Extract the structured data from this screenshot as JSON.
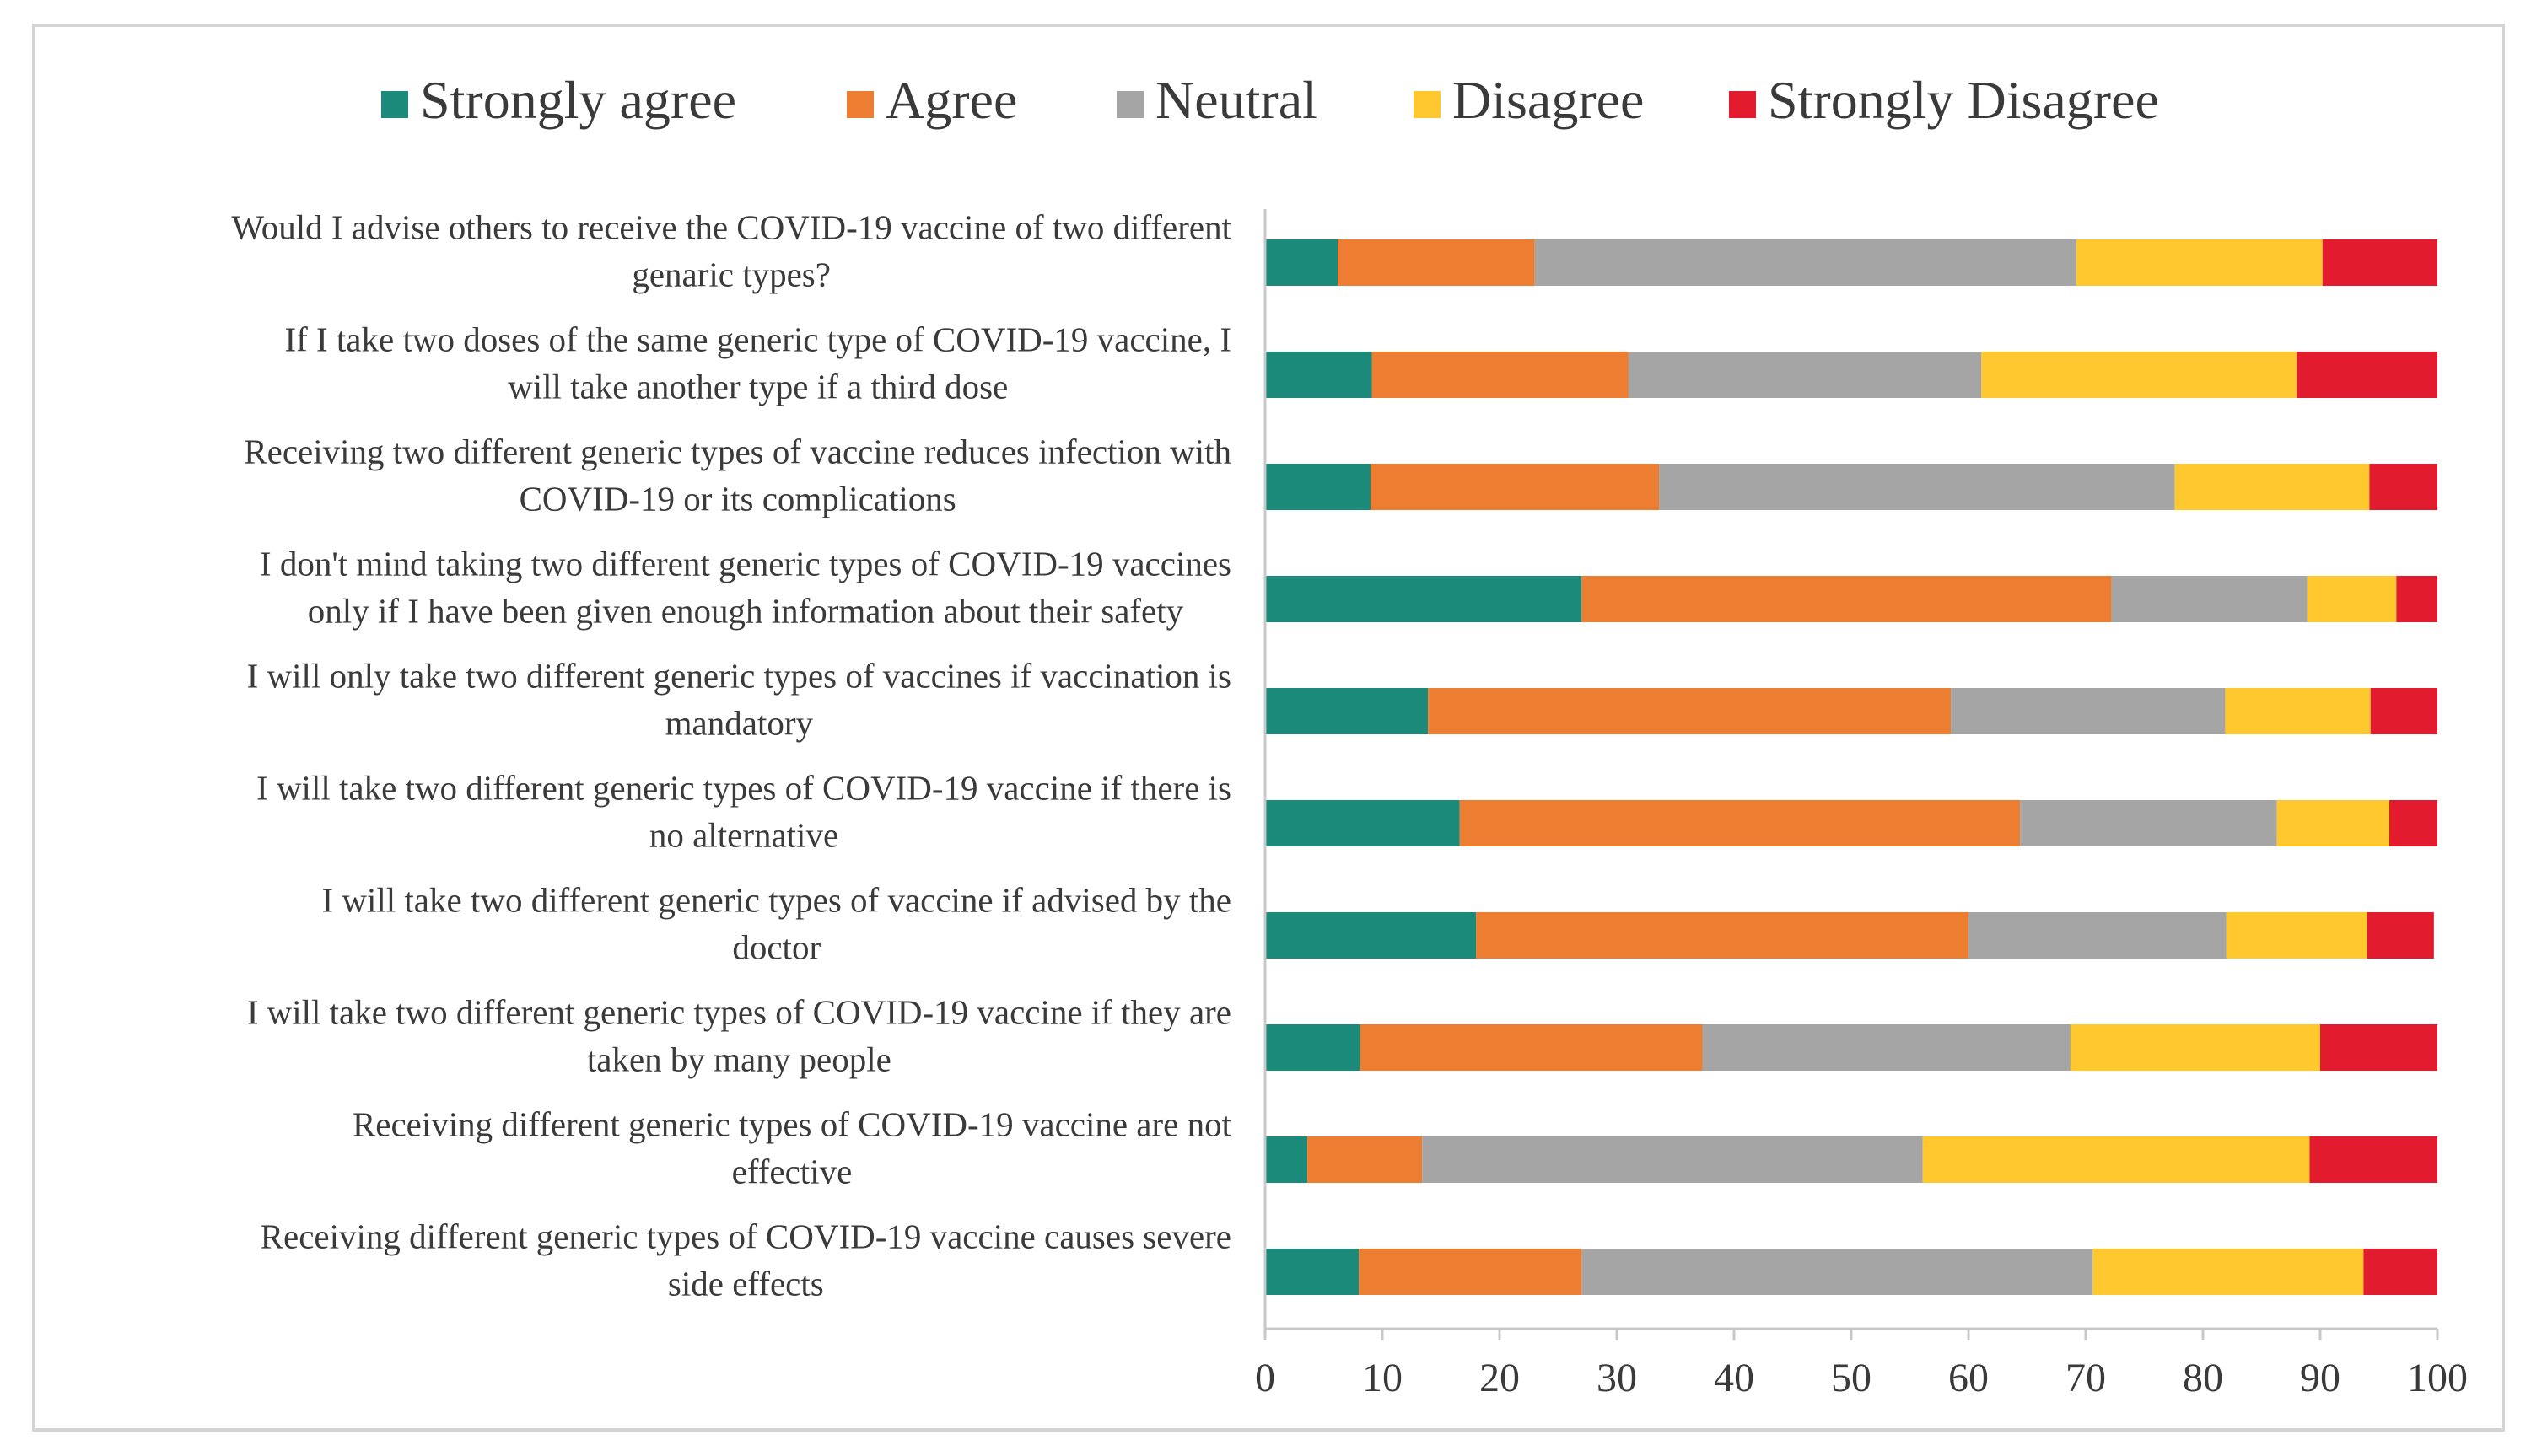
{
  "chart_data": {
    "type": "bar",
    "orientation": "horizontal",
    "stacked": true,
    "title": "",
    "xlabel": "",
    "ylabel": "",
    "xlim": [
      0,
      100
    ],
    "xticks": [
      0,
      10,
      20,
      30,
      40,
      50,
      60,
      70,
      80,
      90,
      100
    ],
    "grid": false,
    "legend_position": "top",
    "categories": [
      [
        "Would I advise others to receive the COVID-19 vaccine of two different",
        "genaric types?"
      ],
      [
        "If I take two doses of the same generic type of COVID-19 vaccine, I",
        "will take another type if a third dose"
      ],
      [
        "Receiving two different generic types of vaccine reduces infection with",
        "COVID-19 or its complications"
      ],
      [
        "I don't mind taking two different generic types of COVID-19 vaccines",
        "only if I have been given enough information about their safety"
      ],
      [
        "I will only take two different generic types of vaccines if vaccination is",
        "mandatory"
      ],
      [
        "I will take two different generic types of COVID-19 vaccine if there is",
        "no alternative"
      ],
      [
        "I will take two different generic types of vaccine if advised by the",
        "doctor"
      ],
      [
        "I will take two different generic types of COVID-19 vaccine if they are",
        "taken by many people"
      ],
      [
        "Receiving different generic types of COVID-19 vaccine are not",
        "effective"
      ],
      [
        "Receiving different generic types of COVID-19 vaccine causes severe",
        "side effects"
      ]
    ],
    "series": [
      {
        "name": "Strongly agree",
        "color": "#1b8a7a",
        "values": [
          6.2,
          9.1,
          9.0,
          27.0,
          13.9,
          16.6,
          18.0,
          8.1,
          3.6,
          8.0
        ]
      },
      {
        "name": "Agree",
        "color": "#ed7d31",
        "values": [
          16.8,
          21.9,
          24.6,
          45.2,
          44.6,
          47.8,
          42.0,
          29.2,
          9.8,
          19.0
        ]
      },
      {
        "name": "Neutral",
        "color": "#a5a5a5",
        "values": [
          46.2,
          30.1,
          44.0,
          16.7,
          23.4,
          21.9,
          22.0,
          31.4,
          42.7,
          43.6
        ]
      },
      {
        "name": "Disagree",
        "color": "#ffc82e",
        "values": [
          21.0,
          26.9,
          16.6,
          7.6,
          12.4,
          9.6,
          12.0,
          21.3,
          33.0,
          23.1
        ]
      },
      {
        "name": "Strongly Disagree",
        "color": "#e31b2e",
        "values": [
          9.8,
          12.0,
          5.8,
          3.5,
          5.7,
          4.1,
          5.7,
          10.0,
          10.9,
          6.3
        ]
      }
    ]
  }
}
